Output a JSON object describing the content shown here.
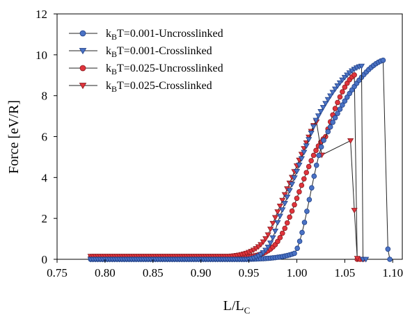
{
  "chart_data": {
    "type": "scatter",
    "xlabel": "L/L",
    "xlabel_sub": "C",
    "ylabel": "Force [eV/R]",
    "xlim": [
      0.75,
      1.11
    ],
    "ylim": [
      0,
      12
    ],
    "xticks": [
      "0.75",
      "0.80",
      "0.85",
      "0.90",
      "0.95",
      "1.00",
      "1.05",
      "1.10"
    ],
    "yticks": [
      "0",
      "2",
      "4",
      "6",
      "8",
      "10",
      "12"
    ],
    "legend_position": "top-left",
    "grid": false,
    "series": [
      {
        "name": "kBT=0.001-Uncrosslinked",
        "legend": {
          "pre": "k",
          "sub": "B",
          "post": "T=0.001-Uncrosslinked"
        },
        "marker": "circle",
        "color": "#4a72c4",
        "stroke": "#1f3f86",
        "x_start": 0.785,
        "step": 0.0025,
        "segments": [
          {
            "from": 0.785,
            "to": 0.945,
            "y": 0.0
          },
          {
            "from": 0.945,
            "to": 0.998,
            "y_from": 0.0,
            "y_to": 0.3,
            "curve": "exp"
          },
          {
            "from": 0.998,
            "to": 1.03,
            "y_from": 0.3,
            "y_to": 6.0,
            "curve": "s"
          },
          {
            "from": 1.03,
            "to": 1.092,
            "y_from": 6.0,
            "y_to": 9.75,
            "curve": "sat"
          }
        ],
        "tail": [
          [
            1.095,
            0.5
          ],
          [
            1.097,
            0.0
          ]
        ]
      },
      {
        "name": "kBT=0.001-Crosslinked",
        "legend": {
          "pre": "k",
          "sub": "B",
          "post": "T=0.001-Crosslinked"
        },
        "marker": "triangle-down",
        "color": "#4a72c4",
        "stroke": "#1f3f86",
        "segments": [
          {
            "from": 0.785,
            "to": 0.95,
            "y": 0.0
          },
          {
            "from": 0.95,
            "to": 0.98,
            "y_from": 0.0,
            "y_to": 1.8,
            "curve": "exp"
          },
          {
            "from": 0.98,
            "to": 1.02,
            "y_from": 1.8,
            "y_to": 6.8,
            "curve": "lin"
          },
          {
            "from": 1.02,
            "to": 1.068,
            "y_from": 6.8,
            "y_to": 9.45,
            "curve": "sat"
          }
        ],
        "tail": [
          [
            1.069,
            0.0
          ],
          [
            1.072,
            0.0
          ]
        ]
      },
      {
        "name": "kBT=0.025-Uncrosslinked",
        "legend": {
          "pre": "k",
          "sub": "B",
          "post": "T=0.025-Uncrosslinked"
        },
        "marker": "circle",
        "color": "#e0343c",
        "stroke": "#8a1a1e",
        "segments": [
          {
            "from": 0.785,
            "to": 0.94,
            "y": 0.1
          },
          {
            "from": 0.94,
            "to": 0.975,
            "y_from": 0.1,
            "y_to": 0.6,
            "curve": "exp"
          },
          {
            "from": 0.975,
            "to": 1.03,
            "y_from": 0.6,
            "y_to": 6.0,
            "curve": "s"
          },
          {
            "from": 1.03,
            "to": 1.062,
            "y_from": 6.0,
            "y_to": 9.05,
            "curve": "sat"
          }
        ],
        "tail": [
          [
            1.063,
            0.0
          ],
          [
            1.066,
            0.0
          ],
          [
            1.069,
            0.0
          ]
        ]
      },
      {
        "name": "kBT=0.025-Crosslinked",
        "legend": {
          "pre": "k",
          "sub": "B",
          "post": "T=0.025-Crosslinked"
        },
        "marker": "triangle-down",
        "color": "#e0343c",
        "stroke": "#8a1a1e",
        "segments": [
          {
            "from": 0.785,
            "to": 0.93,
            "y": 0.15
          },
          {
            "from": 0.93,
            "to": 0.97,
            "y_from": 0.15,
            "y_to": 1.2,
            "curve": "exp"
          },
          {
            "from": 0.97,
            "to": 1.018,
            "y_from": 1.2,
            "y_to": 6.6,
            "curve": "lin"
          },
          {
            "from": 1.018,
            "to": 1.022,
            "y_from": 6.6,
            "y_to": 6.8,
            "curve": "lin"
          }
        ],
        "tail": [
          [
            1.026,
            5.1
          ],
          [
            1.056,
            5.8
          ],
          [
            1.06,
            2.4
          ],
          [
            1.063,
            0.05
          ]
        ]
      }
    ]
  }
}
